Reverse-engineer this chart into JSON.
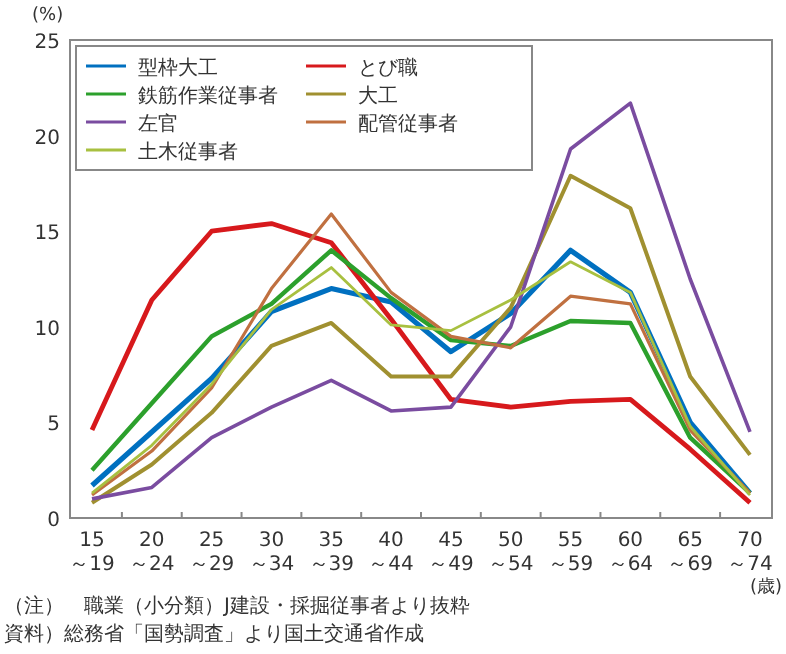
{
  "chart_data": {
    "type": "line",
    "ylabel": "(%)",
    "xlabel": "(歳)",
    "categories": [
      "15～19",
      "20～24",
      "25～29",
      "30～34",
      "35～39",
      "40～44",
      "45～49",
      "50～54",
      "55～59",
      "60～64",
      "65～69",
      "70～74"
    ],
    "series": [
      {
        "name": "型枠大工",
        "color": "#0070c0",
        "values": [
          1.7,
          4.5,
          7.3,
          10.8,
          12.0,
          11.3,
          8.7,
          10.7,
          14.0,
          11.8,
          5.0,
          1.3
        ]
      },
      {
        "name": "とび職",
        "color": "#d7191c",
        "values": [
          4.6,
          11.4,
          15.0,
          15.4,
          14.4,
          10.4,
          6.2,
          5.8,
          6.1,
          6.2,
          3.6,
          0.8
        ]
      },
      {
        "name": "鉄筋作業従事者",
        "color": "#2ca02c",
        "values": [
          2.5,
          6.0,
          9.5,
          11.2,
          14.0,
          11.5,
          9.3,
          9.0,
          10.3,
          10.2,
          4.2,
          1.3
        ]
      },
      {
        "name": "大工",
        "color": "#a09030",
        "values": [
          0.8,
          2.8,
          5.5,
          9.0,
          10.2,
          7.4,
          7.4,
          11.0,
          17.9,
          16.2,
          7.4,
          3.3
        ]
      },
      {
        "name": "左官",
        "color": "#7a4ca0",
        "values": [
          1.0,
          1.6,
          4.2,
          5.8,
          7.2,
          5.6,
          5.8,
          10.0,
          19.3,
          21.7,
          12.5,
          4.5
        ]
      },
      {
        "name": "配管従事者",
        "color": "#c07040",
        "values": [
          1.2,
          3.5,
          6.8,
          12.0,
          15.9,
          11.8,
          9.5,
          8.9,
          11.6,
          11.2,
          4.6,
          1.3
        ]
      },
      {
        "name": "土木従事者",
        "color": "#a8c040",
        "values": [
          1.3,
          3.8,
          7.0,
          10.9,
          13.1,
          10.1,
          9.8,
          11.4,
          13.4,
          11.8,
          4.8,
          1.2
        ]
      }
    ],
    "ylim": [
      0,
      25
    ],
    "yticks": [
      0,
      5,
      10,
      15,
      20,
      25
    ],
    "grid": false,
    "legend": "top left",
    "marker": "none",
    "line_style": "solid",
    "annotations": [
      "（注）　職業（小分類）J建設・採掘従事者より抜粋",
      "資料）総務省「国勢調査」より国土交通省作成"
    ]
  }
}
